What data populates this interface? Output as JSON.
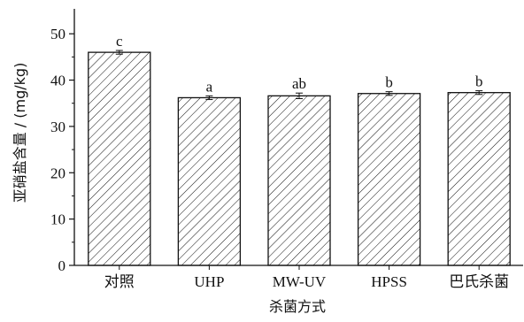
{
  "chart_data": {
    "type": "bar",
    "title": "",
    "xlabel": "杀菌方式",
    "ylabel": "亚硝盐含量 / (mg/kg)",
    "categories": [
      "对照",
      "UHP",
      "MW-UV",
      "HPSS",
      "巴氏杀菌"
    ],
    "values": [
      46.0,
      36.2,
      36.6,
      37.1,
      37.3
    ],
    "errors": [
      0.4,
      0.4,
      0.6,
      0.4,
      0.4
    ],
    "significance": [
      "c",
      "a",
      "ab",
      "b",
      "b"
    ],
    "ylim": [
      0,
      55
    ],
    "yticks": [
      0,
      10,
      20,
      30,
      40,
      50
    ],
    "grid": false,
    "legend": "none",
    "bar_fill": "hatched",
    "colors": {
      "bar_outline": "#111111",
      "hatch": "#111111",
      "axis": "#111111"
    }
  }
}
